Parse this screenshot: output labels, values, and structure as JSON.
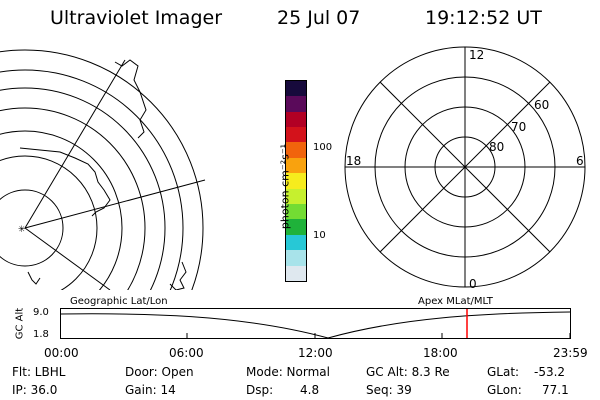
{
  "header": {
    "title": "Ultraviolet Imager",
    "date": "25 Jul 07",
    "time": "19:12:52 UT"
  },
  "colorbar": {
    "unit_label": "photon cm⁻²s⁻¹",
    "ticks": [
      "100",
      "10"
    ],
    "colors": [
      "#dfe8ef",
      "#a8e3ea",
      "#27c8d6",
      "#1fb23a",
      "#73dc33",
      "#c6f02e",
      "#f6ec1d",
      "#f9a20e",
      "#f1640c",
      "#d3121b",
      "#b20024",
      "#5a0a5a",
      "#170a3c"
    ]
  },
  "polar_plot": {
    "mlt_labels": {
      "top": "12",
      "left": "18",
      "right": "6",
      "bottom": "0"
    },
    "lat_labels": [
      "60",
      "70",
      "80"
    ]
  },
  "timeline": {
    "ylabel": "GC Alt",
    "y_ticks": [
      "9.0",
      "1.8"
    ],
    "left_title": "Geographic Lat/Lon",
    "right_title": "Apex MLat/MLT",
    "x_ticks": [
      "00:00",
      "06:00",
      "12:00",
      "18:00",
      "23:59"
    ],
    "current_marker_color": "#ff0000"
  },
  "status": {
    "flt": "Flt: LBHL",
    "ip": "IP: 36.0",
    "door": "Door: Open",
    "gain": "Gain: 14",
    "mode": "Mode: Normal",
    "dsp_label": "Dsp:",
    "dsp_value": "4.8",
    "gc_alt": "GC Alt: 8.3 Re",
    "seq": "Seq: 39",
    "glat_label": "GLat:",
    "glat_value": "-53.2",
    "glon_label": "GLon:",
    "glon_value": "77.1"
  }
}
